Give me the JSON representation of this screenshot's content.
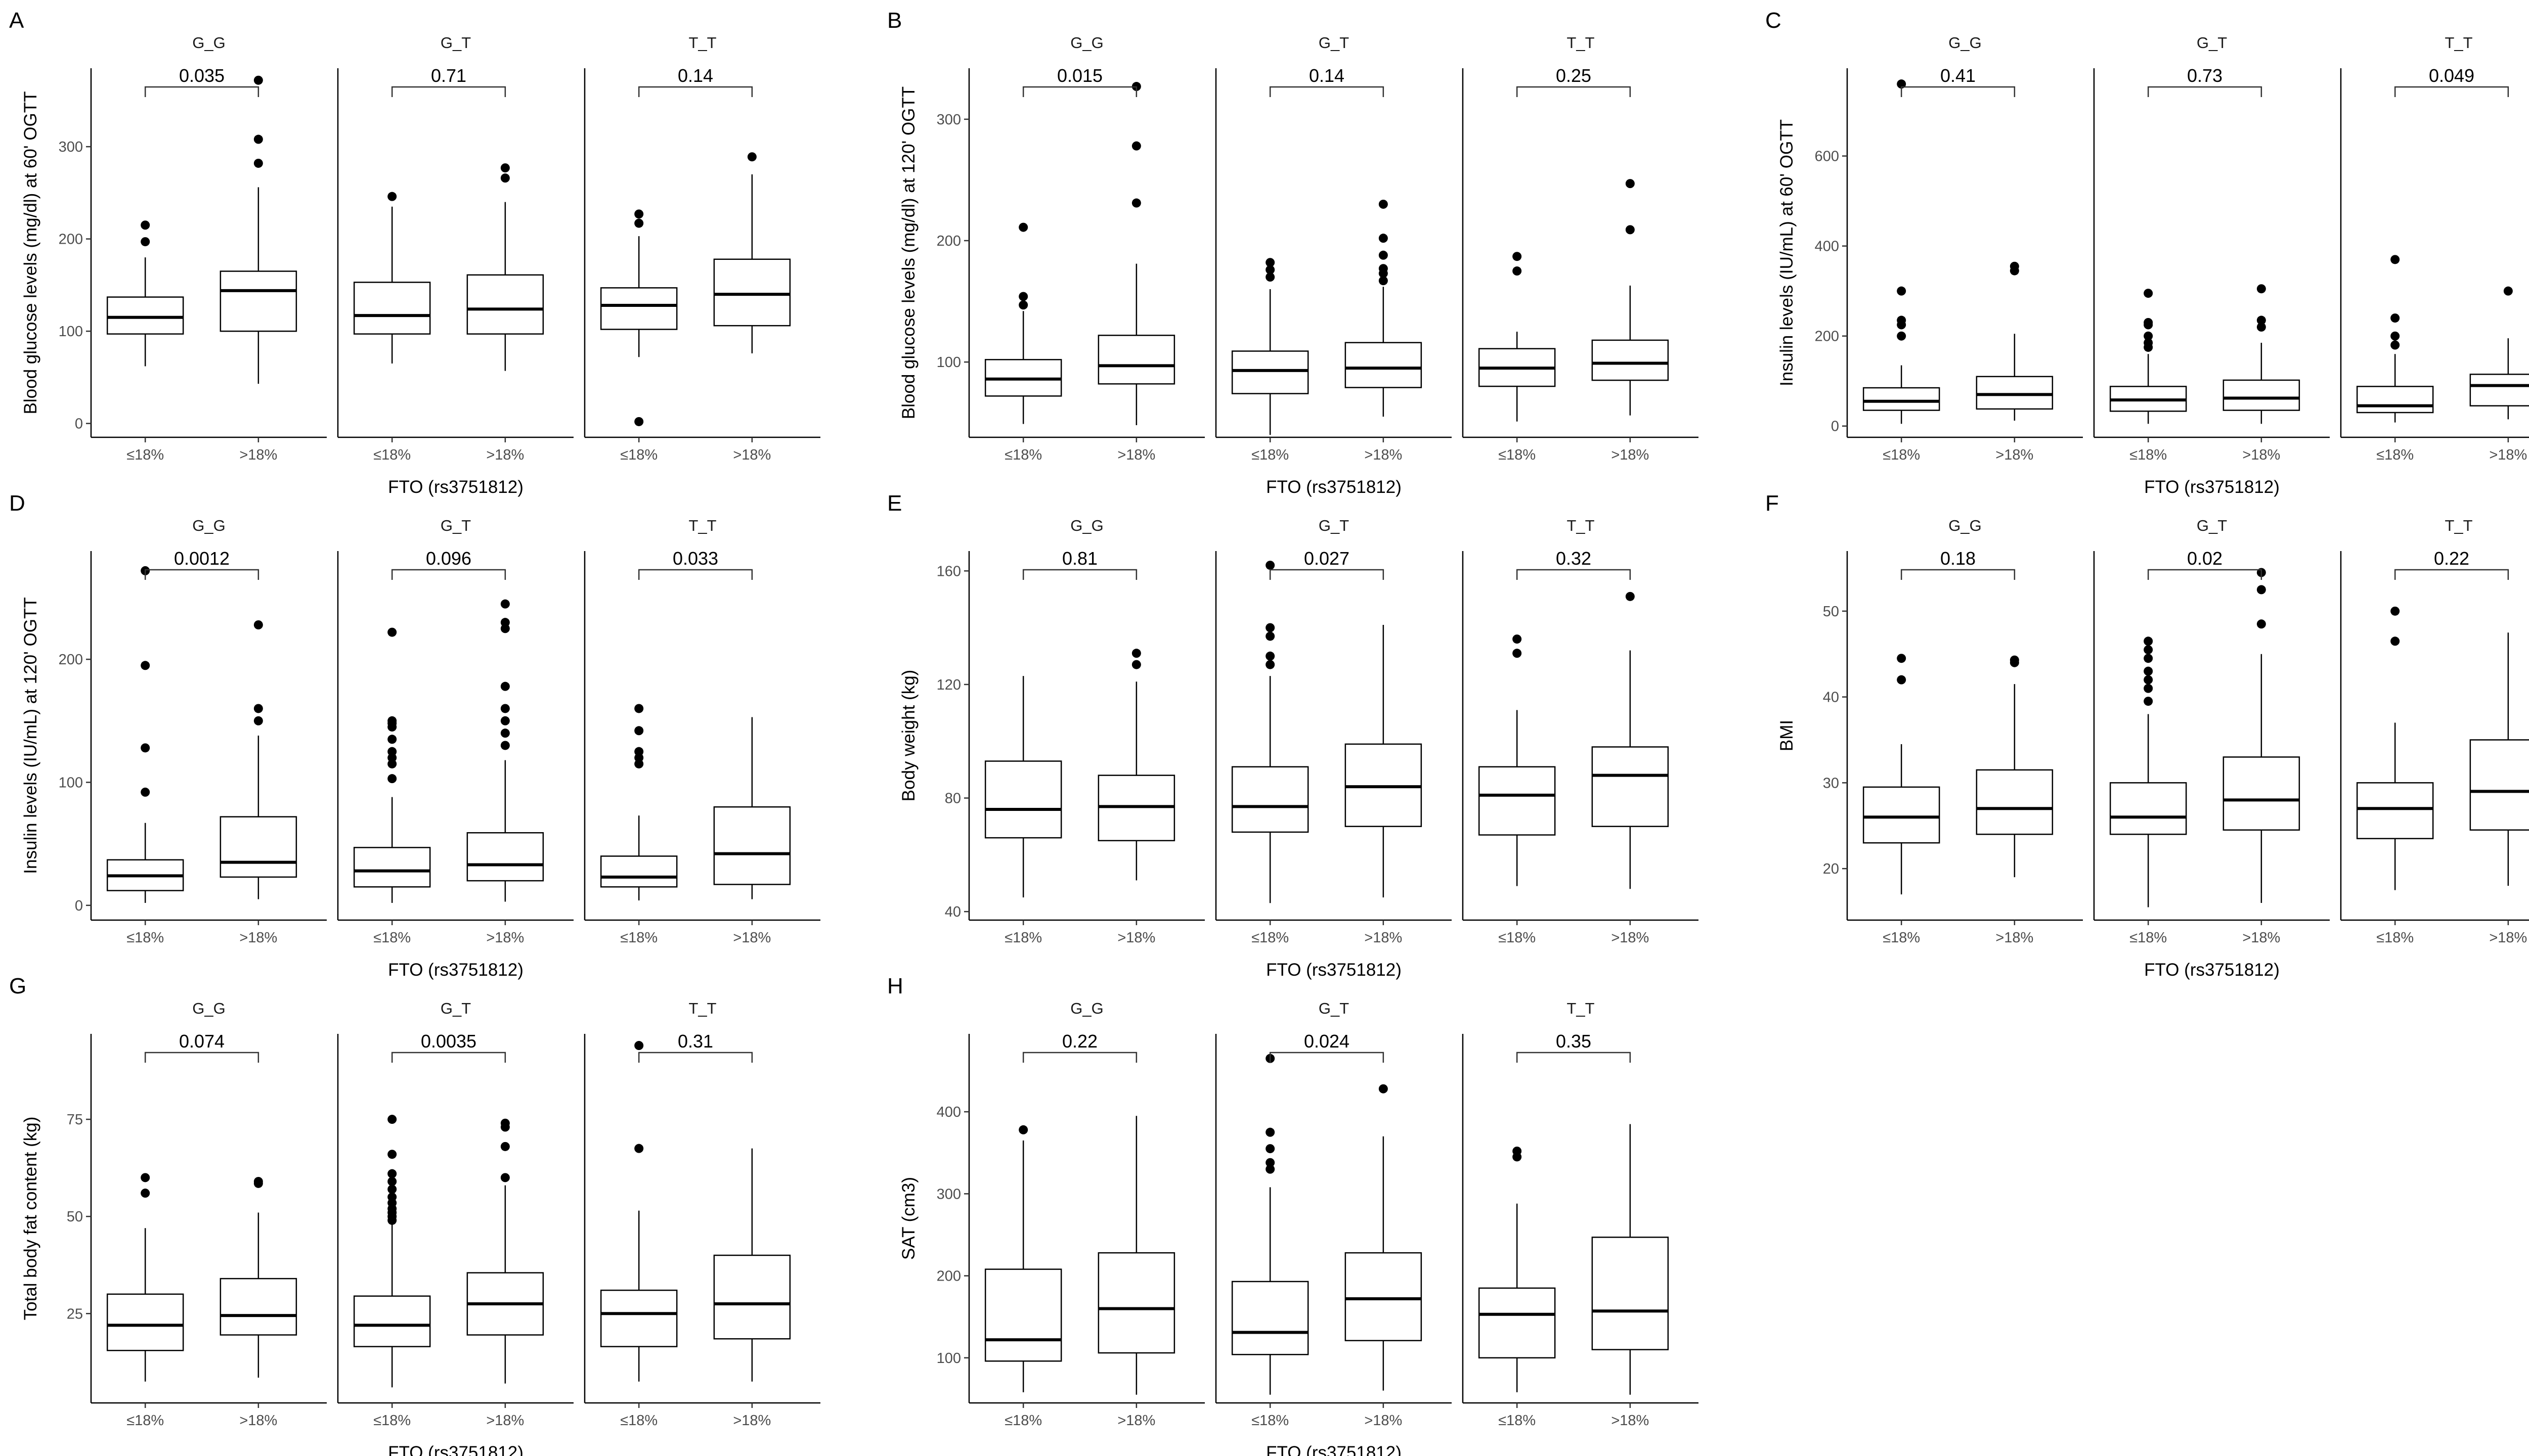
{
  "figure": {
    "facet_labels": [
      "G_G",
      "G_T",
      "T_T"
    ],
    "group_labels": [
      "≤18%",
      ">18%"
    ],
    "x_title": "FTO (rs3751812)"
  },
  "chart_data": [
    {
      "panel": "A",
      "type": "boxplot",
      "ylabel": "Blood glucose levels (mg/dl) at 60' OGTT",
      "ylim": [
        -15,
        385
      ],
      "yticks": [
        0,
        100,
        200,
        300
      ],
      "facets": [
        {
          "genotype": "G_G",
          "p_value": "0.035",
          "boxes": [
            {
              "group": "≤18%",
              "q1": 97,
              "median": 115,
              "q3": 137,
              "whisker_low": 62,
              "whisker_high": 180,
              "outliers": [
                197,
                215
              ]
            },
            {
              "group": ">18%",
              "q1": 100,
              "median": 144,
              "q3": 165,
              "whisker_low": 43,
              "whisker_high": 256,
              "outliers": [
                282,
                308,
                372
              ]
            }
          ]
        },
        {
          "genotype": "G_T",
          "p_value": "0.71",
          "boxes": [
            {
              "group": "≤18%",
              "q1": 97,
              "median": 117,
              "q3": 153,
              "whisker_low": 65,
              "whisker_high": 235,
              "outliers": [
                246
              ]
            },
            {
              "group": ">18%",
              "q1": 97,
              "median": 124,
              "q3": 161,
              "whisker_low": 57,
              "whisker_high": 240,
              "outliers": [
                266,
                277
              ]
            }
          ]
        },
        {
          "genotype": "T_T",
          "p_value": "0.14",
          "boxes": [
            {
              "group": "≤18%",
              "q1": 102,
              "median": 128,
              "q3": 147,
              "whisker_low": 72,
              "whisker_high": 203,
              "outliers": [
                2,
                217,
                227
              ]
            },
            {
              "group": ">18%",
              "q1": 106,
              "median": 140,
              "q3": 178,
              "whisker_low": 76,
              "whisker_high": 270,
              "outliers": [
                289
              ]
            }
          ]
        }
      ]
    },
    {
      "panel": "B",
      "type": "boxplot",
      "ylabel": "Blood glucose levels (mg/dl) at 120' OGTT",
      "ylim": [
        38,
        342
      ],
      "yticks": [
        100,
        200,
        300
      ],
      "facets": [
        {
          "genotype": "G_G",
          "p_value": "0.015",
          "boxes": [
            {
              "group": "≤18%",
              "q1": 72,
              "median": 86,
              "q3": 102,
              "whisker_low": 49,
              "whisker_high": 142,
              "outliers": [
                147,
                154,
                211
              ]
            },
            {
              "group": ">18%",
              "q1": 82,
              "median": 97,
              "q3": 122,
              "whisker_low": 48,
              "whisker_high": 181,
              "outliers": [
                231,
                278,
                327
              ]
            }
          ]
        },
        {
          "genotype": "G_T",
          "p_value": "0.14",
          "boxes": [
            {
              "group": "≤18%",
              "q1": 74,
              "median": 93,
              "q3": 109,
              "whisker_low": 40,
              "whisker_high": 160,
              "outliers": [
                170,
                176,
                182
              ]
            },
            {
              "group": ">18%",
              "q1": 79,
              "median": 95,
              "q3": 116,
              "whisker_low": 55,
              "whisker_high": 162,
              "outliers": [
                167,
                173,
                177,
                188,
                202,
                230
              ]
            }
          ]
        },
        {
          "genotype": "T_T",
          "p_value": "0.25",
          "boxes": [
            {
              "group": "≤18%",
              "q1": 80,
              "median": 95,
              "q3": 111,
              "whisker_low": 51,
              "whisker_high": 125,
              "outliers": [
                175,
                187
              ]
            },
            {
              "group": ">18%",
              "q1": 85,
              "median": 99,
              "q3": 118,
              "whisker_low": 56,
              "whisker_high": 163,
              "outliers": [
                209,
                247
              ]
            }
          ]
        }
      ]
    },
    {
      "panel": "C",
      "type": "boxplot",
      "ylabel": "Insulin levels (IU/mL) at 60' OGTT",
      "ylim": [
        -25,
        795
      ],
      "yticks": [
        0,
        200,
        400,
        600
      ],
      "facets": [
        {
          "genotype": "G_G",
          "p_value": "0.41",
          "boxes": [
            {
              "group": "≤18%",
              "q1": 35,
              "median": 55,
              "q3": 85,
              "whisker_low": 5,
              "whisker_high": 135,
              "outliers": [
                200,
                225,
                235,
                300,
                760
              ]
            },
            {
              "group": ">18%",
              "q1": 38,
              "median": 70,
              "q3": 110,
              "whisker_low": 12,
              "whisker_high": 205,
              "outliers": [
                345,
                355
              ]
            }
          ]
        },
        {
          "genotype": "G_T",
          "p_value": "0.73",
          "boxes": [
            {
              "group": "≤18%",
              "q1": 33,
              "median": 58,
              "q3": 88,
              "whisker_low": 5,
              "whisker_high": 160,
              "outliers": [
                175,
                185,
                200,
                225,
                230,
                295
              ]
            },
            {
              "group": ">18%",
              "q1": 35,
              "median": 62,
              "q3": 102,
              "whisker_low": 5,
              "whisker_high": 185,
              "outliers": [
                220,
                235,
                305
              ]
            }
          ]
        },
        {
          "genotype": "T_T",
          "p_value": "0.049",
          "boxes": [
            {
              "group": "≤18%",
              "q1": 30,
              "median": 45,
              "q3": 88,
              "whisker_low": 8,
              "whisker_high": 160,
              "outliers": [
                180,
                200,
                240,
                370
              ]
            },
            {
              "group": ">18%",
              "q1": 45,
              "median": 90,
              "q3": 115,
              "whisker_low": 15,
              "whisker_high": 195,
              "outliers": [
                300
              ]
            }
          ]
        }
      ]
    },
    {
      "panel": "D",
      "type": "boxplot",
      "ylabel": "Insulin levels (IU/mL) at 120' OGTT",
      "ylim": [
        -12,
        288
      ],
      "yticks": [
        0,
        100,
        200
      ],
      "facets": [
        {
          "genotype": "G_G",
          "p_value": "0.0012",
          "boxes": [
            {
              "group": "≤18%",
              "q1": 12,
              "median": 24,
              "q3": 37,
              "whisker_low": 2,
              "whisker_high": 67,
              "outliers": [
                92,
                128,
                195,
                272
              ]
            },
            {
              "group": ">18%",
              "q1": 23,
              "median": 35,
              "q3": 72,
              "whisker_low": 5,
              "whisker_high": 138,
              "outliers": [
                150,
                160,
                228
              ]
            }
          ]
        },
        {
          "genotype": "G_T",
          "p_value": "0.096",
          "boxes": [
            {
              "group": "≤18%",
              "q1": 15,
              "median": 28,
              "q3": 47,
              "whisker_low": 2,
              "whisker_high": 88,
              "outliers": [
                103,
                115,
                120,
                125,
                135,
                145,
                148,
                150,
                222
              ]
            },
            {
              "group": ">18%",
              "q1": 20,
              "median": 33,
              "q3": 59,
              "whisker_low": 3,
              "whisker_high": 118,
              "outliers": [
                130,
                140,
                150,
                160,
                178,
                225,
                230,
                245
              ]
            }
          ]
        },
        {
          "genotype": "T_T",
          "p_value": "0.033",
          "boxes": [
            {
              "group": "≤18%",
              "q1": 15,
              "median": 23,
              "q3": 40,
              "whisker_low": 4,
              "whisker_high": 73,
              "outliers": [
                115,
                120,
                125,
                142,
                160
              ]
            },
            {
              "group": ">18%",
              "q1": 17,
              "median": 42,
              "q3": 80,
              "whisker_low": 5,
              "whisker_high": 153,
              "outliers": []
            }
          ]
        }
      ]
    },
    {
      "panel": "E",
      "type": "boxplot",
      "ylabel": "Body weight (kg)",
      "ylim": [
        37,
        167
      ],
      "yticks": [
        40,
        80,
        120,
        160
      ],
      "facets": [
        {
          "genotype": "G_G",
          "p_value": "0.81",
          "boxes": [
            {
              "group": "≤18%",
              "q1": 66,
              "median": 76,
              "q3": 93,
              "whisker_low": 45,
              "whisker_high": 123,
              "outliers": []
            },
            {
              "group": ">18%",
              "q1": 65,
              "median": 77,
              "q3": 88,
              "whisker_low": 51,
              "whisker_high": 121,
              "outliers": [
                127,
                131
              ]
            }
          ]
        },
        {
          "genotype": "G_T",
          "p_value": "0.027",
          "boxes": [
            {
              "group": "≤18%",
              "q1": 68,
              "median": 77,
              "q3": 91,
              "whisker_low": 43,
              "whisker_high": 123,
              "outliers": [
                127,
                130,
                137,
                140,
                162
              ]
            },
            {
              "group": ">18%",
              "q1": 70,
              "median": 84,
              "q3": 99,
              "whisker_low": 45,
              "whisker_high": 141,
              "outliers": []
            }
          ]
        },
        {
          "genotype": "T_T",
          "p_value": "0.32",
          "boxes": [
            {
              "group": "≤18%",
              "q1": 67,
              "median": 81,
              "q3": 91,
              "whisker_low": 49,
              "whisker_high": 111,
              "outliers": [
                131,
                136
              ]
            },
            {
              "group": ">18%",
              "q1": 70,
              "median": 88,
              "q3": 98,
              "whisker_low": 48,
              "whisker_high": 132,
              "outliers": [
                151
              ]
            }
          ]
        }
      ]
    },
    {
      "panel": "F",
      "type": "boxplot",
      "ylabel": "BMI",
      "ylim": [
        14,
        57
      ],
      "yticks": [
        20,
        30,
        40,
        50
      ],
      "facets": [
        {
          "genotype": "G_G",
          "p_value": "0.18",
          "boxes": [
            {
              "group": "≤18%",
              "q1": 23,
              "median": 26,
              "q3": 29.5,
              "whisker_low": 17,
              "whisker_high": 34.5,
              "outliers": [
                42,
                44.5
              ]
            },
            {
              "group": ">18%",
              "q1": 24,
              "median": 27,
              "q3": 31.5,
              "whisker_low": 19,
              "whisker_high": 41.5,
              "outliers": [
                44,
                44.3
              ]
            }
          ]
        },
        {
          "genotype": "G_T",
          "p_value": "0.02",
          "boxes": [
            {
              "group": "≤18%",
              "q1": 24,
              "median": 26,
              "q3": 30,
              "whisker_low": 15.5,
              "whisker_high": 38,
              "outliers": [
                39.5,
                41,
                42,
                43,
                44.5,
                45.5,
                46.5
              ]
            },
            {
              "group": ">18%",
              "q1": 24.5,
              "median": 28,
              "q3": 33,
              "whisker_low": 16,
              "whisker_high": 45,
              "outliers": [
                48.5,
                52.5,
                54.5
              ]
            }
          ]
        },
        {
          "genotype": "T_T",
          "p_value": "0.22",
          "boxes": [
            {
              "group": "≤18%",
              "q1": 23.5,
              "median": 27,
              "q3": 30,
              "whisker_low": 17.5,
              "whisker_high": 37,
              "outliers": [
                46.5,
                50
              ]
            },
            {
              "group": ">18%",
              "q1": 24.5,
              "median": 29,
              "q3": 35,
              "whisker_low": 18,
              "whisker_high": 47.5,
              "outliers": []
            }
          ]
        }
      ]
    },
    {
      "panel": "G",
      "type": "boxplot",
      "ylabel": "Total body fat content (kg)",
      "ylim": [
        2,
        97
      ],
      "yticks": [
        25,
        50,
        75
      ],
      "facets": [
        {
          "genotype": "G_G",
          "p_value": "0.074",
          "boxes": [
            {
              "group": "≤18%",
              "q1": 15.5,
              "median": 22,
              "q3": 30,
              "whisker_low": 7.5,
              "whisker_high": 47,
              "outliers": [
                56,
                60
              ]
            },
            {
              "group": ">18%",
              "q1": 19.5,
              "median": 24.5,
              "q3": 34,
              "whisker_low": 8.5,
              "whisker_high": 51,
              "outliers": [
                58.5,
                59
              ]
            }
          ]
        },
        {
          "genotype": "G_T",
          "p_value": "0.0035",
          "boxes": [
            {
              "group": "≤18%",
              "q1": 16.5,
              "median": 22,
              "q3": 29.5,
              "whisker_low": 6,
              "whisker_high": 48,
              "outliers": [
                49,
                50,
                51,
                52,
                53.5,
                55,
                57,
                59,
                61,
                66,
                75
              ]
            },
            {
              "group": ">18%",
              "q1": 19.5,
              "median": 27.5,
              "q3": 35.5,
              "whisker_low": 7,
              "whisker_high": 58,
              "outliers": [
                60,
                68,
                73,
                74
              ]
            }
          ]
        },
        {
          "genotype": "T_T",
          "p_value": "0.31",
          "boxes": [
            {
              "group": "≤18%",
              "q1": 16.5,
              "median": 25,
              "q3": 31,
              "whisker_low": 7.5,
              "whisker_high": 51.5,
              "outliers": [
                67.5,
                94
              ]
            },
            {
              "group": ">18%",
              "q1": 18.5,
              "median": 27.5,
              "q3": 40,
              "whisker_low": 7.5,
              "whisker_high": 67.5,
              "outliers": []
            }
          ]
        }
      ]
    },
    {
      "panel": "H",
      "type": "boxplot",
      "ylabel": "SAT (cm3)",
      "ylim": [
        45,
        495
      ],
      "yticks": [
        100,
        200,
        300,
        400
      ],
      "facets": [
        {
          "genotype": "G_G",
          "p_value": "0.22",
          "boxes": [
            {
              "group": "≤18%",
              "q1": 96,
              "median": 122,
              "q3": 208,
              "whisker_low": 58,
              "whisker_high": 365,
              "outliers": [
                378
              ]
            },
            {
              "group": ">18%",
              "q1": 106,
              "median": 160,
              "q3": 228,
              "whisker_low": 55,
              "whisker_high": 395,
              "outliers": []
            }
          ]
        },
        {
          "genotype": "G_T",
          "p_value": "0.024",
          "boxes": [
            {
              "group": "≤18%",
              "q1": 104,
              "median": 131,
              "q3": 193,
              "whisker_low": 55,
              "whisker_high": 308,
              "outliers": [
                330,
                338,
                355,
                375,
                465
              ]
            },
            {
              "group": ">18%",
              "q1": 121,
              "median": 172,
              "q3": 228,
              "whisker_low": 60,
              "whisker_high": 370,
              "outliers": [
                428
              ]
            }
          ]
        },
        {
          "genotype": "T_T",
          "p_value": "0.35",
          "boxes": [
            {
              "group": "≤18%",
              "q1": 100,
              "median": 153,
              "q3": 185,
              "whisker_low": 58,
              "whisker_high": 288,
              "outliers": [
                345,
                352
              ]
            },
            {
              "group": ">18%",
              "q1": 110,
              "median": 157,
              "q3": 247,
              "whisker_low": 55,
              "whisker_high": 385,
              "outliers": []
            }
          ]
        }
      ]
    }
  ]
}
